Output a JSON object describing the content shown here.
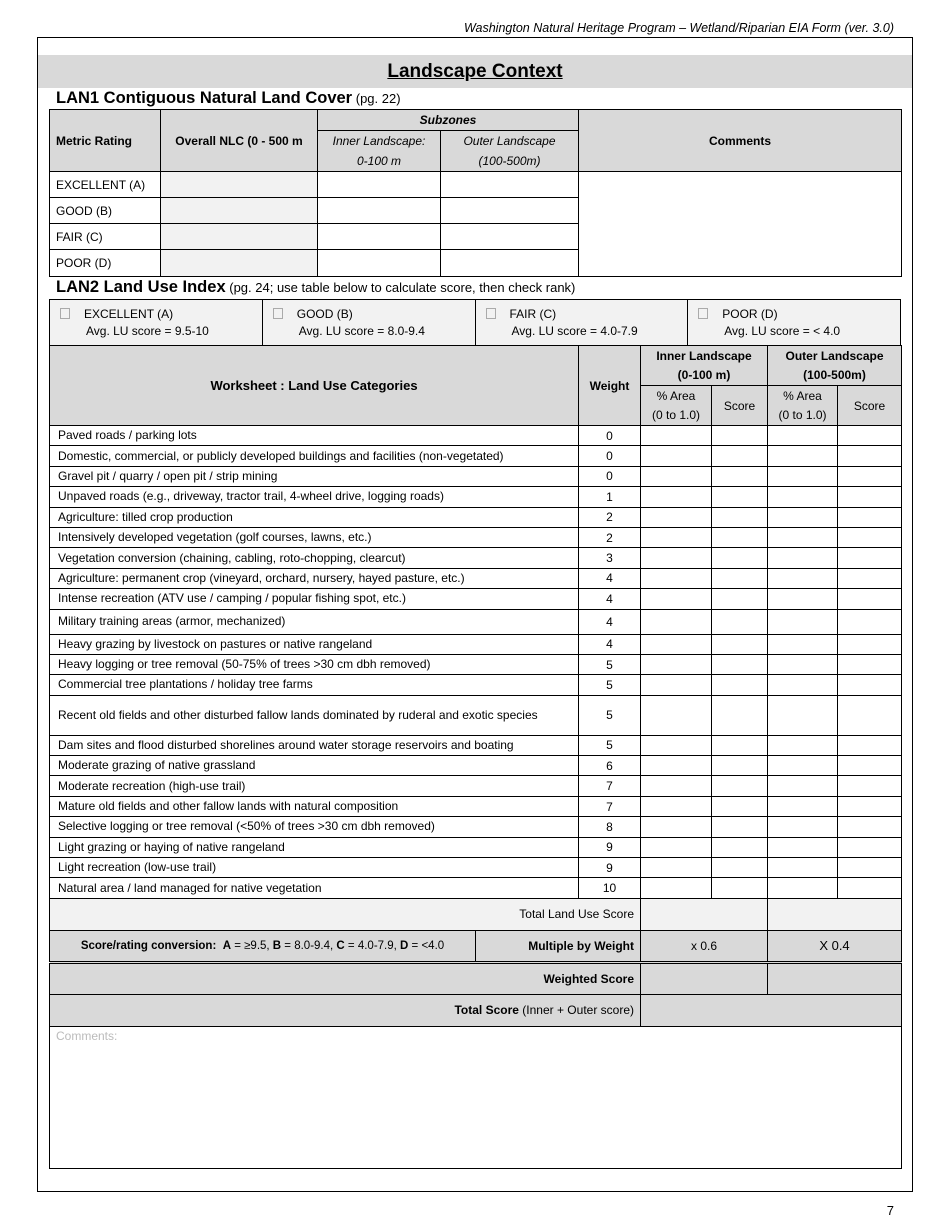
{
  "header": "Washington Natural Heritage Program – Wetland/Riparian EIA Form (ver. 3.0)",
  "title": "Landscape Context",
  "lan1": {
    "title": "LAN1 Contiguous Natural Land Cover",
    "ref": "(pg. 22)",
    "headers": {
      "metric": "Metric Rating",
      "overall": "Overall NLC  (0 - 500 m",
      "subzones": "Subzones",
      "inner1": "Inner Landscape:",
      "inner2": "0-100 m",
      "outer1": "Outer Landscape",
      "outer2": "(100-500m)",
      "comments": "Comments"
    },
    "rows": [
      "EXCELLENT (A)",
      "GOOD (B)",
      "FAIR (C)",
      "POOR (D)"
    ]
  },
  "lan2": {
    "title": "LAN2 Land Use Index",
    "ref": "(pg. 24; use table below to calculate score, then check rank)",
    "ranks": [
      {
        "label": "EXCELLENT (A)",
        "range": "Avg. LU score = 9.5-10"
      },
      {
        "label": "GOOD (B)",
        "range": "Avg. LU score = 8.0-9.4"
      },
      {
        "label": "FAIR (C)",
        "range": "Avg. LU score = 4.0-7.9"
      },
      {
        "label": "POOR (D)",
        "range": "Avg. LU score = < 4.0"
      }
    ],
    "headers": {
      "worksheet": "Worksheet : Land Use Categories",
      "weight": "Weight",
      "inner1": "Inner Landscape",
      "inner2": "(0-100 m)",
      "outer1": "Outer Landscape",
      "outer2": "(100-500m)",
      "area1": "% Area",
      "area2": "(0 to 1.0)",
      "score": "Score"
    },
    "rows": [
      {
        "cat": "Paved roads / parking lots",
        "w": "0"
      },
      {
        "cat": "Domestic, commercial, or publicly developed buildings and facilities (non-vegetated)",
        "w": "0"
      },
      {
        "cat": "Gravel pit / quarry / open pit / strip mining",
        "w": "0"
      },
      {
        "cat": "Unpaved roads (e.g., driveway, tractor trail, 4-wheel drive, logging roads)",
        "w": "1"
      },
      {
        "cat": "Agriculture: tilled crop production",
        "w": "2"
      },
      {
        "cat": "Intensively developed vegetation (golf courses, lawns, etc.)",
        "w": "2"
      },
      {
        "cat": "Vegetation conversion (chaining, cabling, roto-chopping, clearcut)",
        "w": "3"
      },
      {
        "cat": "Agriculture: permanent crop (vineyard, orchard, nursery, hayed pasture, etc.)",
        "w": "4"
      },
      {
        "cat": "Intense recreation (ATV use / camping / popular fishing spot, etc.)",
        "w": "4"
      },
      {
        "cat": "Military training areas (armor, mechanized)",
        "w": "4"
      },
      {
        "cat": "Heavy grazing by livestock on pastures or native rangeland",
        "w": "4"
      },
      {
        "cat": "Heavy logging or tree removal (50-75% of trees >30 cm dbh removed)",
        "w": "5"
      },
      {
        "cat": "Commercial tree plantations / holiday tree farms",
        "w": "5"
      },
      {
        "cat": "Recent old fields and other disturbed fallow lands dominated by ruderal and exotic species",
        "w": "5"
      },
      {
        "cat": "Dam sites and flood disturbed shorelines around water storage reservoirs and boating",
        "w": "5"
      },
      {
        "cat": "Moderate grazing of native grassland",
        "w": "6"
      },
      {
        "cat": "Moderate recreation (high-use trail)",
        "w": "7"
      },
      {
        "cat": "Mature old fields and other fallow lands with natural composition",
        "w": "7"
      },
      {
        "cat": "Selective logging or tree removal (<50% of trees >30 cm dbh removed)",
        "w": "8"
      },
      {
        "cat": "Light grazing or haying of native rangeland",
        "w": "9"
      },
      {
        "cat": "Light recreation (low-use trail)",
        "w": "9"
      },
      {
        "cat": "Natural area / land managed for native vegetation",
        "w": "10"
      }
    ],
    "total_lu": "Total Land Use Score",
    "conversion": {
      "prefix": "Score/rating conversion:",
      "a": "A",
      "a_v": " = ≥9.5, ",
      "b": "B",
      "b_v": " = 8.0-9.4, ",
      "c": "C",
      "c_v": " = 4.0-7.9, ",
      "d": "D",
      "d_v": " = <4.0"
    },
    "multiply": "Multiple by Weight",
    "inner_mult": "x 0.6",
    "outer_mult": "X 0.4",
    "weighted": "Weighted Score",
    "total_bold": "Total Score",
    "total_rest": " (Inner + Outer score)",
    "comments_placeholder": "Comments:"
  },
  "page_number": "7"
}
